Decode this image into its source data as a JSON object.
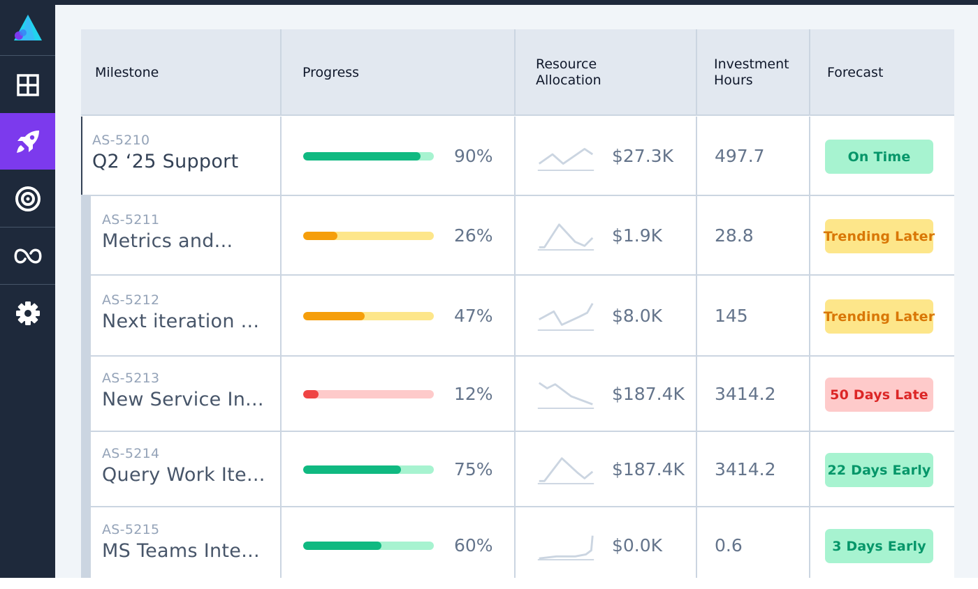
{
  "sidebar": {
    "items": [
      {
        "icon": "grid-icon",
        "active": false
      },
      {
        "icon": "rocket-icon",
        "active": true
      },
      {
        "icon": "target-icon",
        "active": false
      },
      {
        "icon": "infinity-icon",
        "active": false
      },
      {
        "icon": "gear-icon",
        "active": false
      }
    ]
  },
  "table": {
    "columns": {
      "milestone": "Milestone",
      "progress": "Progress",
      "resource": "Resource\nAllocation",
      "investment": "Investment\nHours",
      "forecast": "Forecast"
    },
    "rows": [
      {
        "id": "AS-5210",
        "name": "Q2 ‘25 Support",
        "progress": 0.9,
        "progress_label": "90%",
        "progress_color": "#10b981",
        "track_color": "#a7f3d0",
        "allocation": "$27.3K",
        "hours": "497.7",
        "forecast": "On Time",
        "forecast_status": "green"
      },
      {
        "id": "AS-5211",
        "name": "Metrics and...",
        "progress": 0.26,
        "progress_label": "26%",
        "progress_color": "#f59e0b",
        "track_color": "#fde68a",
        "allocation": "$1.9K",
        "hours": "28.8",
        "forecast": "Trending Later",
        "forecast_status": "yellow"
      },
      {
        "id": "AS-5212",
        "name": "Next iteration ...",
        "progress": 0.47,
        "progress_label": "47%",
        "progress_color": "#f59e0b",
        "track_color": "#fde68a",
        "allocation": "$8.0K",
        "hours": "145",
        "forecast": "Trending Later",
        "forecast_status": "yellow"
      },
      {
        "id": "AS-5213",
        "name": "New Service In...",
        "progress": 0.12,
        "progress_label": "12%",
        "progress_color": "#ef4444",
        "track_color": "#fecaca",
        "allocation": "$187.4K",
        "hours": "3414.2",
        "forecast": "50 Days Late",
        "forecast_status": "red"
      },
      {
        "id": "AS-5214",
        "name": "Query Work Ite...",
        "progress": 0.75,
        "progress_label": "75%",
        "progress_color": "#10b981",
        "track_color": "#a7f3d0",
        "allocation": "$187.4K",
        "hours": "3414.2",
        "forecast": "22 Days Early",
        "forecast_status": "green"
      },
      {
        "id": "AS-5215",
        "name": "MS Teams Inte...",
        "progress": 0.6,
        "progress_label": "60%",
        "progress_color": "#10b981",
        "track_color": "#a7f3d0",
        "allocation": "$0.0K",
        "hours": "0.6",
        "forecast": "3 Days Early",
        "forecast_status": "green"
      }
    ]
  },
  "colors": {
    "sidebar_bg": "#1e293b",
    "active_accent": "#7c3aed",
    "grid_line": "#cbd5e1",
    "sparkline": "#cbd5e1"
  }
}
